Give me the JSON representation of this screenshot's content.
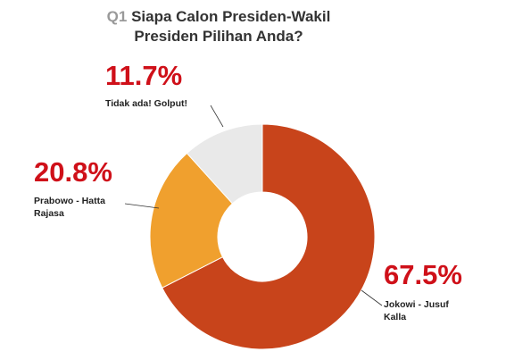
{
  "chart_data": {
    "type": "donut",
    "title_prefix": "Q1",
    "title": "Siapa Calon Presiden-Wakil Presiden Pilihan Anda?",
    "categories": [
      "Jokowi - Jusuf Kalla",
      "Prabowo - Hatta Rajasa",
      "Tidak ada! Golput!"
    ],
    "values": [
      67.5,
      20.8,
      11.7
    ],
    "value_labels": [
      "67.5%",
      "20.8%",
      "11.7%"
    ],
    "colors": [
      "#c8441b",
      "#f0a02e",
      "#e9e9e9"
    ]
  }
}
